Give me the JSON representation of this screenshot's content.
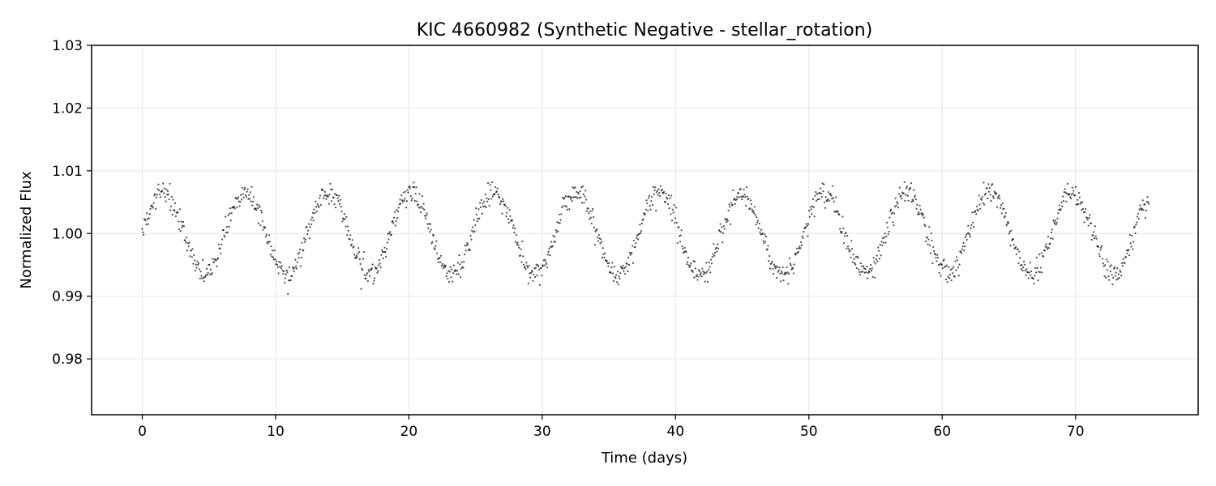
{
  "chart_data": {
    "type": "scatter",
    "title": "KIC 4660982 (Synthetic Negative - stellar_rotation)",
    "xlabel": "Time (days)",
    "ylabel": "Normalized Flux",
    "xlim": [
      -3.8,
      79.2
    ],
    "ylim": [
      0.9711,
      1.03
    ],
    "x_ticks": [
      0,
      10,
      20,
      30,
      40,
      50,
      60,
      70
    ],
    "x_tick_labels": [
      "0",
      "10",
      "20",
      "30",
      "40",
      "50",
      "60",
      "70"
    ],
    "y_ticks": [
      0.98,
      0.99,
      1.0,
      1.01,
      1.02,
      1.03
    ],
    "y_tick_labels": [
      "0.98",
      "0.99",
      "1.00",
      "1.01",
      "1.02",
      "1.03"
    ],
    "grid": true,
    "series": [
      {
        "name": "flux",
        "marker": "dot",
        "color": "#111111",
        "model": {
          "baseline": 1.0,
          "amplitude": 0.0065,
          "period_days": 6.2,
          "phase_offset_days": 0.0,
          "noise_sigma": 0.0009,
          "t_start": 0.0,
          "t_end": 75.5,
          "n_points": 1500
        }
      }
    ]
  }
}
